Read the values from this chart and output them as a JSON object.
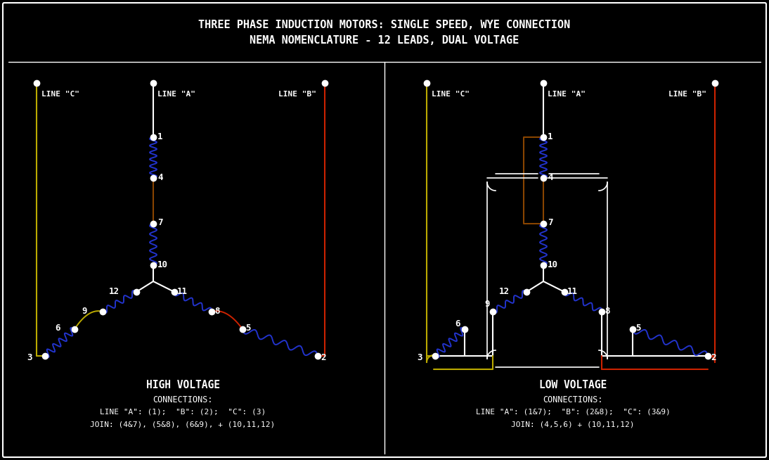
{
  "title_line1": "THREE PHASE INDUCTION MOTORS: SINGLE SPEED, WYE CONNECTION",
  "title_line2": "NEMA NOMENCLATURE - 12 LEADS, DUAL VOLTAGE",
  "bg_color": "#000000",
  "fg_color": "#ffffff",
  "wire_blue": "#2233cc",
  "wire_yellow": "#bbaa00",
  "wire_red": "#cc2200",
  "wire_brown": "#884400",
  "high_voltage_label": "HIGH VOLTAGE",
  "low_voltage_label": "LOW VOLTAGE",
  "hv_conn1": "CONNECTIONS:",
  "hv_conn2": "LINE \"A\": (1);  \"B\": (2);  \"C\": (3)",
  "hv_conn3": "JOIN: (4&7), (5&8), (6&9), + (10,11,12)",
  "lv_conn1": "CONNECTIONS:",
  "lv_conn2": "LINE \"A\": (1&7);  \"B\": (2&8);  \"C\": (3&9)",
  "lv_conn3": "JOIN: (4,5,6) + (10,11,12)"
}
